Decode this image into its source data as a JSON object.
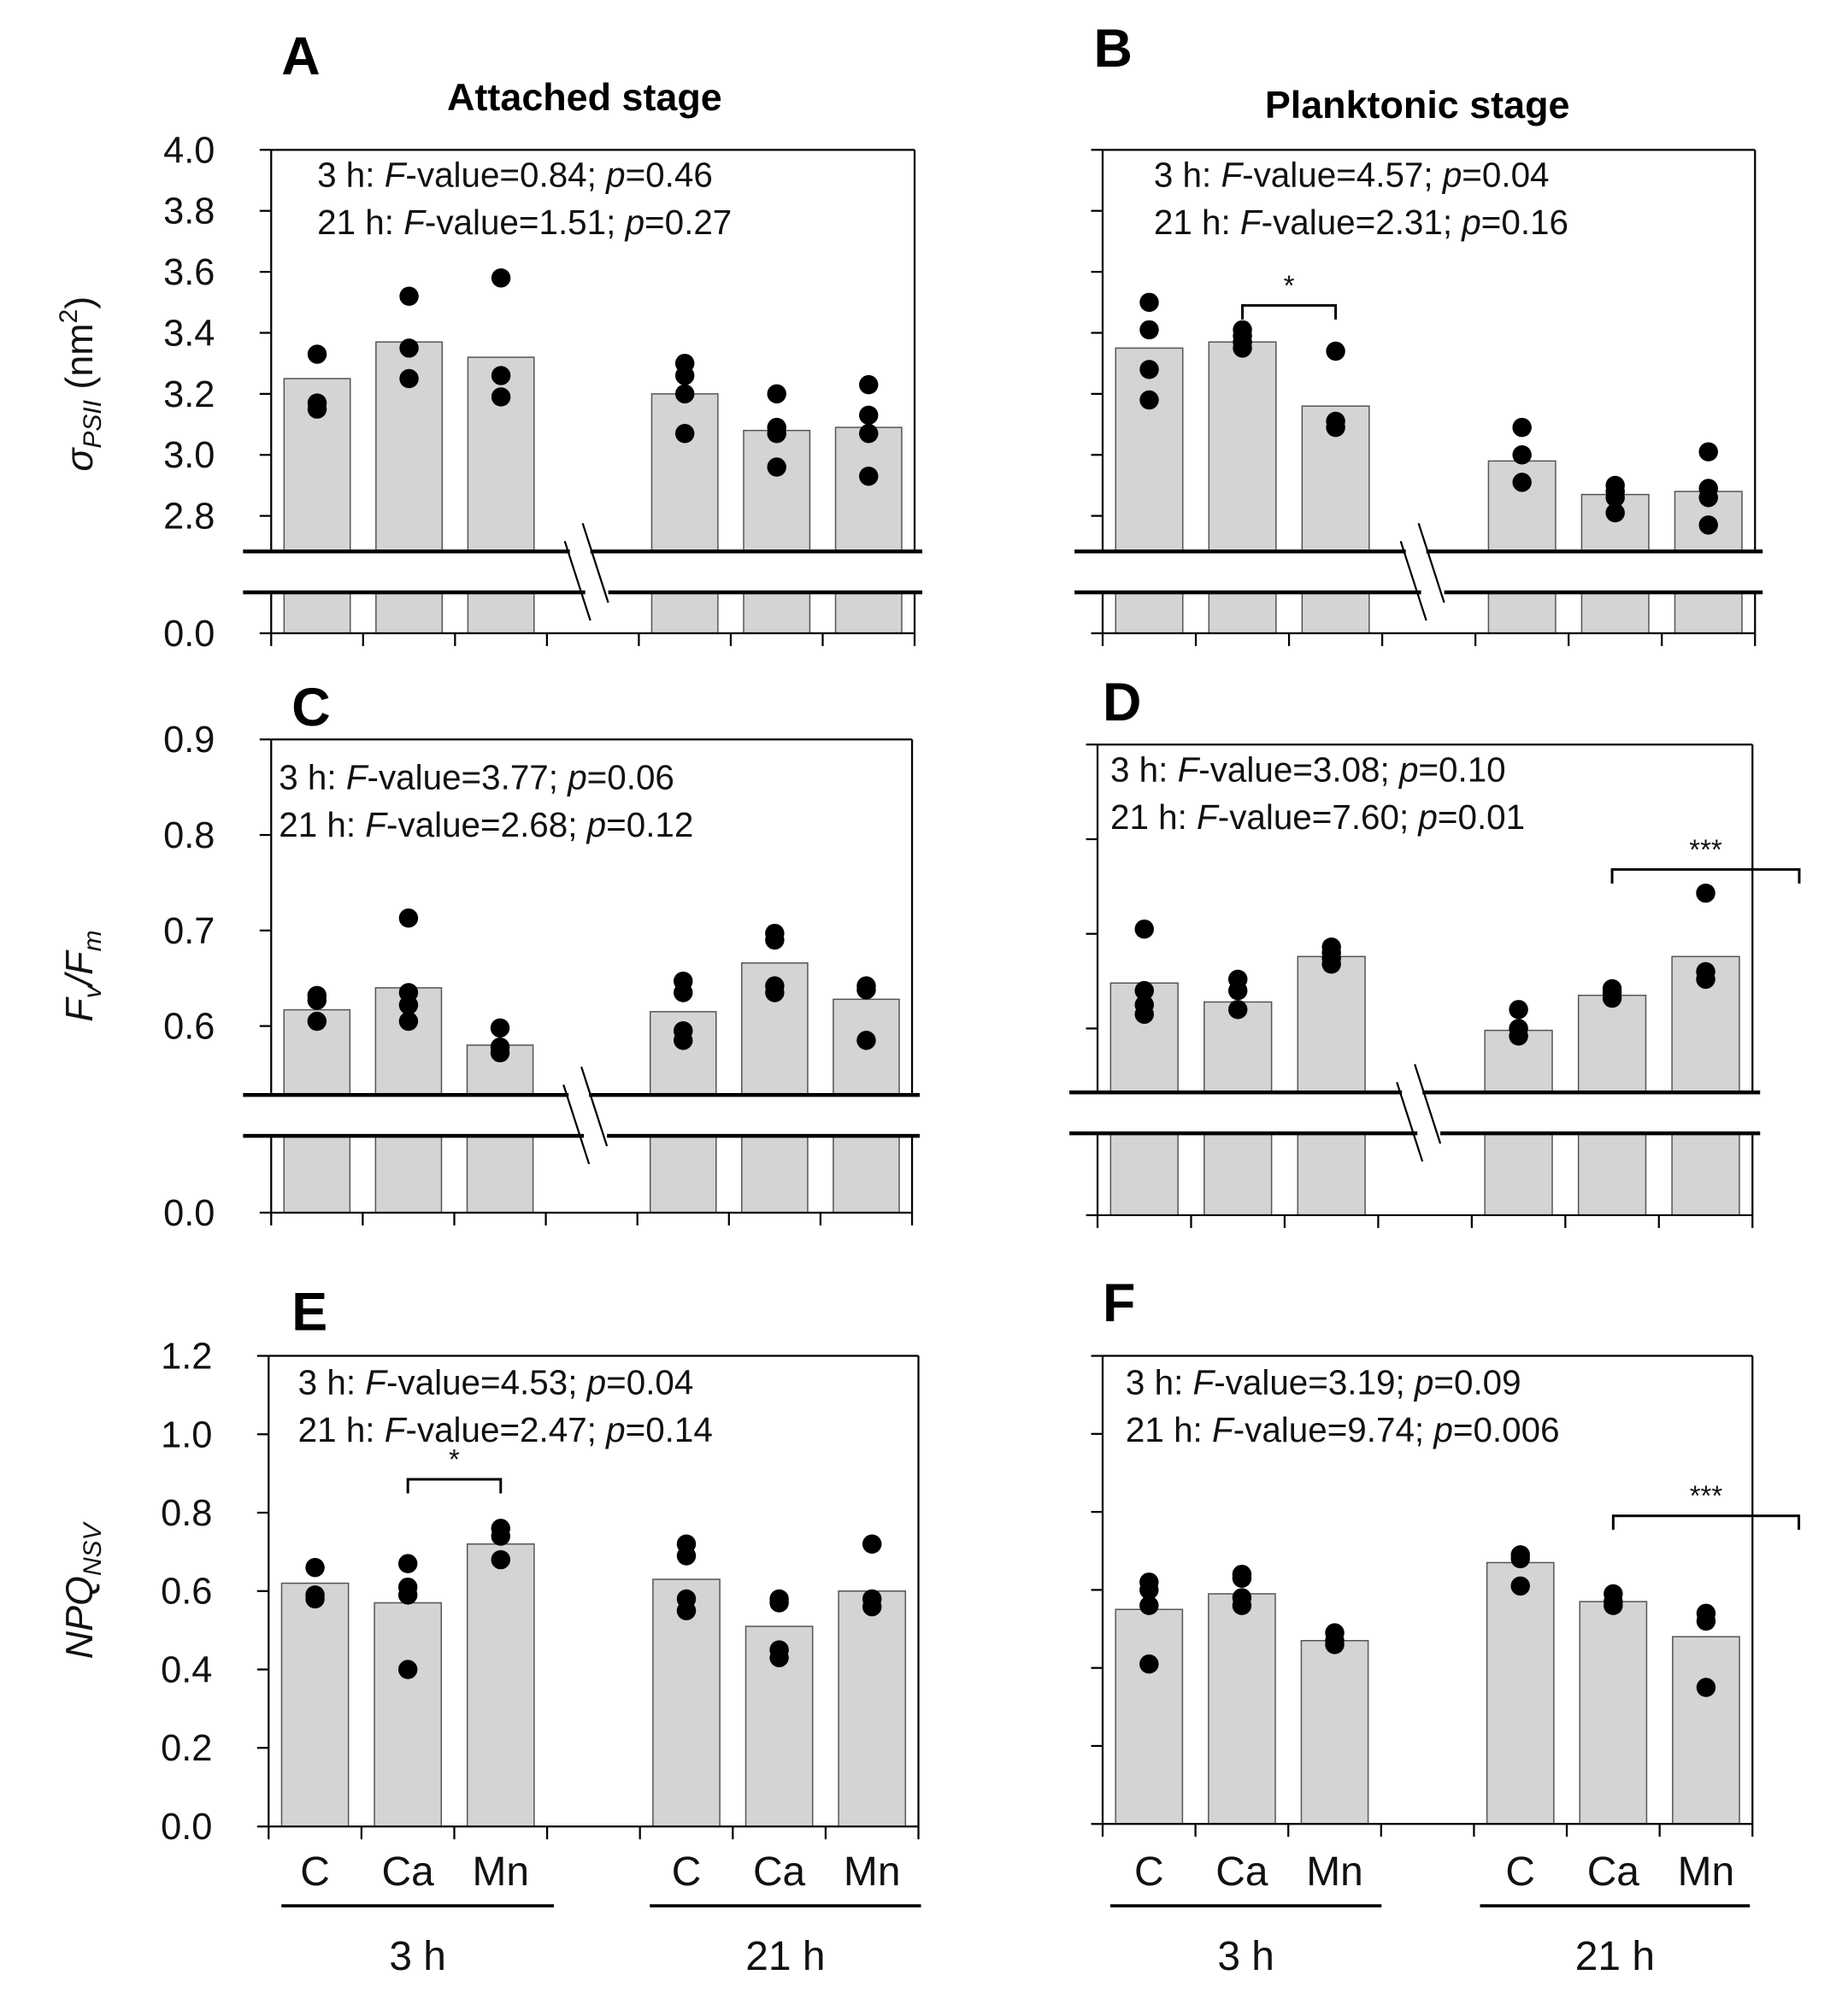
{
  "colors": {
    "bar": "#d4d4d4",
    "bar_stroke": "#555555",
    "point": "#000000",
    "axis": "#000000"
  },
  "stat_labels": {
    "F": "F",
    "value": "-value=",
    "p": "p",
    "sep": "; ",
    "eq": "=",
    "colon": ": "
  },
  "x_categories": [
    "C",
    "Ca",
    "Mn"
  ],
  "x_groups": [
    "3 h",
    "21 h"
  ],
  "chart_data": [
    {
      "panel": "A",
      "type": "bar",
      "title": "Attached stage",
      "ylabel": [
        {
          "t": "σ",
          "s": "i"
        },
        {
          "t": "PSII",
          "s": "sub"
        },
        {
          "t": " (nm",
          "s": ""
        },
        {
          "t": "2",
          "s": "sup"
        },
        {
          "t": ")",
          "s": ""
        }
      ],
      "ylim": [
        0,
        4.0
      ],
      "axis_break": [
        2.68,
        0.0
      ],
      "y_ticks": [
        4.0,
        3.8,
        3.6,
        3.4,
        3.2,
        3.0,
        2.8,
        0.0
      ],
      "y_tick_labels": [
        "4.0",
        "3.8",
        "3.6",
        "3.4",
        "3.2",
        "3.0",
        "2.8",
        "0.0"
      ],
      "stats": [
        {
          "time": "3 h",
          "F": "0.84",
          "p": "0.46"
        },
        {
          "time": "21 h",
          "F": "1.51",
          "p": "0.27"
        }
      ],
      "series": [
        {
          "group": "3 h",
          "category": "C",
          "mean": 3.25,
          "points": [
            3.33,
            3.17,
            3.15
          ]
        },
        {
          "group": "3 h",
          "category": "Ca",
          "mean": 3.37,
          "points": [
            3.52,
            3.35,
            3.25
          ]
        },
        {
          "group": "3 h",
          "category": "Mn",
          "mean": 3.32,
          "points": [
            3.58,
            3.26,
            3.19
          ]
        },
        {
          "group": "21 h",
          "category": "C",
          "mean": 3.2,
          "points": [
            3.3,
            3.26,
            3.2,
            3.07
          ]
        },
        {
          "group": "21 h",
          "category": "Ca",
          "mean": 3.08,
          "points": [
            3.2,
            3.09,
            3.07,
            2.96
          ]
        },
        {
          "group": "21 h",
          "category": "Mn",
          "mean": 3.09,
          "points": [
            3.23,
            3.13,
            3.07,
            2.93
          ]
        }
      ],
      "significance": []
    },
    {
      "panel": "B",
      "type": "bar",
      "title": "Planktonic stage",
      "ylim": [
        0,
        4.0
      ],
      "axis_break": [
        2.68,
        0.0
      ],
      "y_ticks": [
        4.0,
        3.8,
        3.6,
        3.4,
        3.2,
        3.0,
        2.8,
        0.0
      ],
      "stats": [
        {
          "time": "3 h",
          "F": "4.57",
          "p": "0.04"
        },
        {
          "time": "21 h",
          "F": "2.31",
          "p": "0.16"
        }
      ],
      "series": [
        {
          "group": "3 h",
          "category": "C",
          "mean": 3.35,
          "points": [
            3.5,
            3.41,
            3.28,
            3.18
          ]
        },
        {
          "group": "3 h",
          "category": "Ca",
          "mean": 3.37,
          "points": [
            3.41,
            3.39,
            3.37,
            3.35
          ]
        },
        {
          "group": "3 h",
          "category": "Mn",
          "mean": 3.16,
          "points": [
            3.34,
            3.11,
            3.09
          ]
        },
        {
          "group": "21 h",
          "category": "C",
          "mean": 2.98,
          "points": [
            3.09,
            3.0,
            2.91
          ]
        },
        {
          "group": "21 h",
          "category": "Ca",
          "mean": 2.87,
          "points": [
            2.9,
            2.88,
            2.86,
            2.81
          ]
        },
        {
          "group": "21 h",
          "category": "Mn",
          "mean": 2.88,
          "points": [
            3.01,
            2.89,
            2.86,
            2.77
          ]
        }
      ],
      "significance": [
        {
          "from": 1,
          "to": 2,
          "level": 3.49,
          "label": "*"
        }
      ]
    },
    {
      "panel": "C",
      "type": "bar",
      "ylabel": [
        {
          "t": "F",
          "s": "i"
        },
        {
          "t": "v",
          "s": "sub"
        },
        {
          "t": "/",
          "s": "i"
        },
        {
          "t": "F",
          "s": "i"
        },
        {
          "t": "m",
          "s": "sub"
        }
      ],
      "ylim": [
        0,
        0.9
      ],
      "axis_break": [
        0.53,
        0.0
      ],
      "y_ticks": [
        0.9,
        0.8,
        0.7,
        0.6,
        0.0
      ],
      "y_tick_labels": [
        "0.9",
        "0.8",
        "0.7",
        "0.6",
        "0.0"
      ],
      "stats": [
        {
          "time": "3 h",
          "F": "3.77",
          "p": "0.06"
        },
        {
          "time": "21 h",
          "F": "2.68",
          "p": "0.12"
        }
      ],
      "series": [
        {
          "group": "3 h",
          "category": "C",
          "mean": 0.617,
          "points": [
            0.632,
            0.627,
            0.605
          ]
        },
        {
          "group": "3 h",
          "category": "Ca",
          "mean": 0.64,
          "points": [
            0.713,
            0.635,
            0.622,
            0.605
          ]
        },
        {
          "group": "3 h",
          "category": "Mn",
          "mean": 0.58,
          "points": [
            0.598,
            0.578,
            0.572
          ]
        },
        {
          "group": "21 h",
          "category": "C",
          "mean": 0.615,
          "points": [
            0.647,
            0.635,
            0.595,
            0.585
          ]
        },
        {
          "group": "21 h",
          "category": "Ca",
          "mean": 0.666,
          "points": [
            0.697,
            0.69,
            0.642,
            0.635
          ]
        },
        {
          "group": "21 h",
          "category": "Mn",
          "mean": 0.628,
          "points": [
            0.642,
            0.638,
            0.585
          ]
        }
      ],
      "significance": []
    },
    {
      "panel": "D",
      "type": "bar",
      "ylim": [
        0,
        0.9
      ],
      "axis_break": [
        0.53,
        0.0
      ],
      "y_ticks": [
        0.9,
        0.8,
        0.7,
        0.6,
        0.0
      ],
      "stats": [
        {
          "time": "3 h",
          "F": "3.08",
          "p": "0.10"
        },
        {
          "time": "21 h",
          "F": "7.60",
          "p": "0.01"
        }
      ],
      "series": [
        {
          "group": "3 h",
          "category": "C",
          "mean": 0.648,
          "points": [
            0.705,
            0.64,
            0.625,
            0.615
          ]
        },
        {
          "group": "3 h",
          "category": "Ca",
          "mean": 0.628,
          "points": [
            0.652,
            0.64,
            0.62
          ]
        },
        {
          "group": "3 h",
          "category": "Mn",
          "mean": 0.676,
          "points": [
            0.686,
            0.68,
            0.674,
            0.668
          ]
        },
        {
          "group": "21 h",
          "category": "C",
          "mean": 0.598,
          "points": [
            0.62,
            0.6,
            0.592
          ]
        },
        {
          "group": "21 h",
          "category": "Ca",
          "mean": 0.635,
          "points": [
            0.642,
            0.638,
            0.632
          ]
        },
        {
          "group": "21 h",
          "category": "Mn",
          "mean": 0.676,
          "points": [
            0.743,
            0.66,
            0.652
          ]
        }
      ],
      "significance": [
        {
          "from": 4,
          "to": 6,
          "level": 0.768,
          "label": "***"
        }
      ]
    },
    {
      "panel": "E",
      "type": "bar",
      "ylabel": [
        {
          "t": "NPQ",
          "s": "i"
        },
        {
          "t": "NSV",
          "s": "sub"
        }
      ],
      "ylim": [
        0,
        1.2
      ],
      "y_ticks": [
        1.2,
        1.0,
        0.8,
        0.6,
        0.4,
        0.2,
        0.0
      ],
      "y_tick_labels": [
        "1.2",
        "1.0",
        "0.8",
        "0.6",
        "0.4",
        "0.2",
        "0.0"
      ],
      "stats": [
        {
          "time": "3 h",
          "F": "4.53",
          "p": "0.04"
        },
        {
          "time": "21 h",
          "F": "2.47",
          "p": "0.14"
        }
      ],
      "series": [
        {
          "group": "3 h",
          "category": "C",
          "mean": 0.62,
          "points": [
            0.66,
            0.59,
            0.58
          ]
        },
        {
          "group": "3 h",
          "category": "Ca",
          "mean": 0.57,
          "points": [
            0.67,
            0.61,
            0.59,
            0.4
          ]
        },
        {
          "group": "3 h",
          "category": "Mn",
          "mean": 0.72,
          "points": [
            0.76,
            0.74,
            0.68
          ]
        },
        {
          "group": "21 h",
          "category": "C",
          "mean": 0.63,
          "points": [
            0.72,
            0.69,
            0.58,
            0.55
          ]
        },
        {
          "group": "21 h",
          "category": "Ca",
          "mean": 0.51,
          "points": [
            0.58,
            0.57,
            0.45,
            0.43
          ]
        },
        {
          "group": "21 h",
          "category": "Mn",
          "mean": 0.6,
          "points": [
            0.72,
            0.58,
            0.56
          ]
        }
      ],
      "significance": [
        {
          "from": 1,
          "to": 2,
          "level": 0.885,
          "label": "*"
        }
      ]
    },
    {
      "panel": "F",
      "type": "bar",
      "ylim": [
        0,
        1.2
      ],
      "y_ticks": [
        1.2,
        1.0,
        0.8,
        0.6,
        0.4,
        0.2,
        0.0
      ],
      "stats": [
        {
          "time": "3 h",
          "F": "3.19",
          "p": "0.09"
        },
        {
          "time": "21 h",
          "F": "9.74",
          "p": "0.006"
        }
      ],
      "series": [
        {
          "group": "3 h",
          "category": "C",
          "mean": 0.55,
          "points": [
            0.62,
            0.6,
            0.56,
            0.41
          ]
        },
        {
          "group": "3 h",
          "category": "Ca",
          "mean": 0.59,
          "points": [
            0.64,
            0.63,
            0.58,
            0.56
          ]
        },
        {
          "group": "3 h",
          "category": "Mn",
          "mean": 0.47,
          "points": [
            0.49,
            0.47,
            0.46
          ]
        },
        {
          "group": "21 h",
          "category": "C",
          "mean": 0.67,
          "points": [
            0.69,
            0.68,
            0.61
          ]
        },
        {
          "group": "21 h",
          "category": "Ca",
          "mean": 0.57,
          "points": [
            0.59,
            0.57,
            0.56
          ]
        },
        {
          "group": "21 h",
          "category": "Mn",
          "mean": 0.48,
          "points": [
            0.54,
            0.52,
            0.35
          ]
        }
      ],
      "significance": [
        {
          "from": 4,
          "to": 6,
          "level": 0.79,
          "label": "***"
        }
      ]
    }
  ]
}
